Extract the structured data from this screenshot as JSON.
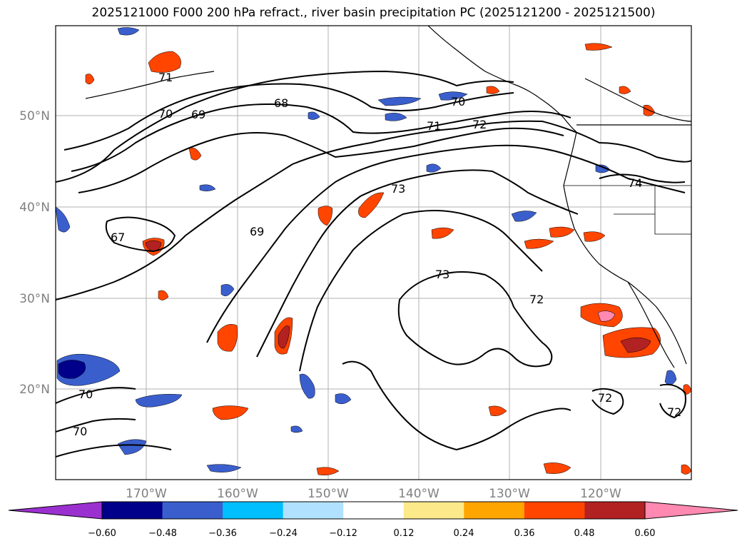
{
  "title": "2025121000 F000 200 hPa refract., river basin precipitation PC (2025121200 - 2025121500)",
  "map": {
    "lat_ticks": [
      "50°N",
      "40°N",
      "30°N",
      "20°N"
    ],
    "lon_ticks": [
      "170°W",
      "160°W",
      "150°W",
      "140°W",
      "130°W",
      "120°W"
    ],
    "extent": {
      "lon": [
        -180,
        -110
      ],
      "lat": [
        10,
        60
      ]
    },
    "grid": true,
    "contour_labels": [
      "71",
      "70",
      "69",
      "68",
      "70",
      "71",
      "72",
      "73",
      "67",
      "69",
      "73",
      "72",
      "74",
      "70",
      "70",
      "72",
      "72"
    ]
  },
  "colorbar": {
    "ticks": [
      "−0.60",
      "−0.48",
      "−0.36",
      "−0.24",
      "−0.12",
      "0.12",
      "0.24",
      "0.36",
      "0.48",
      "0.60"
    ],
    "colors": [
      "#9b30d0",
      "#00008b",
      "#3a5fcd",
      "#00bfff",
      "#b0e2ff",
      "#ffffff",
      "#fce98a",
      "#ffa500",
      "#ff4500",
      "#b22222",
      "#ff89b0"
    ]
  },
  "colors": {
    "land_outline": "#000000",
    "gridline": "#b0b0b0",
    "tick_label": "#808080"
  }
}
